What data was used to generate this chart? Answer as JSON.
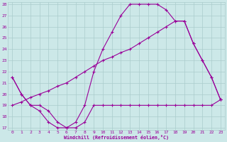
{
  "xlabel": "Windchill (Refroidissement éolien,°C)",
  "bg_color": "#cce8e8",
  "grid_color": "#aacccc",
  "line_color": "#990099",
  "x_min": 0,
  "x_max": 23,
  "y_min": 17,
  "y_max": 28,
  "line1_x": [
    0,
    1,
    2,
    3,
    4,
    5,
    6,
    7,
    8,
    9,
    10,
    11,
    12,
    13,
    14,
    15,
    16,
    17,
    18,
    19,
    20,
    21,
    22,
    23
  ],
  "line1_y": [
    21.5,
    20.0,
    19.0,
    18.5,
    17.5,
    17.0,
    17.0,
    17.0,
    17.5,
    19.0,
    19.0,
    19.0,
    19.0,
    19.0,
    19.0,
    19.0,
    19.0,
    19.0,
    19.0,
    19.0,
    19.0,
    19.0,
    19.0,
    19.5
  ],
  "line2_x": [
    0,
    1,
    2,
    3,
    4,
    5,
    6,
    7,
    8,
    9,
    10,
    11,
    12,
    13,
    14,
    15,
    16,
    17,
    18,
    19,
    20,
    21,
    22,
    23
  ],
  "line2_y": [
    21.5,
    20.0,
    19.0,
    19.0,
    18.5,
    17.5,
    17.0,
    17.5,
    19.0,
    22.0,
    24.0,
    25.5,
    27.0,
    28.0,
    28.0,
    28.0,
    28.0,
    27.5,
    26.5,
    26.5,
    24.5,
    23.0,
    21.5,
    19.5
  ],
  "line3_x": [
    0,
    1,
    2,
    3,
    4,
    5,
    6,
    7,
    8,
    9,
    10,
    11,
    12,
    13,
    14,
    15,
    16,
    17,
    18,
    19,
    20,
    21,
    22,
    23
  ],
  "line3_y": [
    19.0,
    19.3,
    19.7,
    20.0,
    20.3,
    20.7,
    21.0,
    21.5,
    22.0,
    22.5,
    23.0,
    23.3,
    23.7,
    24.0,
    24.5,
    25.0,
    25.5,
    26.0,
    26.5,
    26.5,
    24.5,
    23.0,
    21.5,
    19.5
  ],
  "y_ticks": [
    17,
    18,
    19,
    20,
    21,
    22,
    23,
    24,
    25,
    26,
    27,
    28
  ],
  "x_ticks": [
    0,
    1,
    2,
    3,
    4,
    5,
    6,
    7,
    8,
    9,
    10,
    11,
    12,
    13,
    14,
    15,
    16,
    17,
    18,
    19,
    20,
    21,
    22,
    23
  ]
}
